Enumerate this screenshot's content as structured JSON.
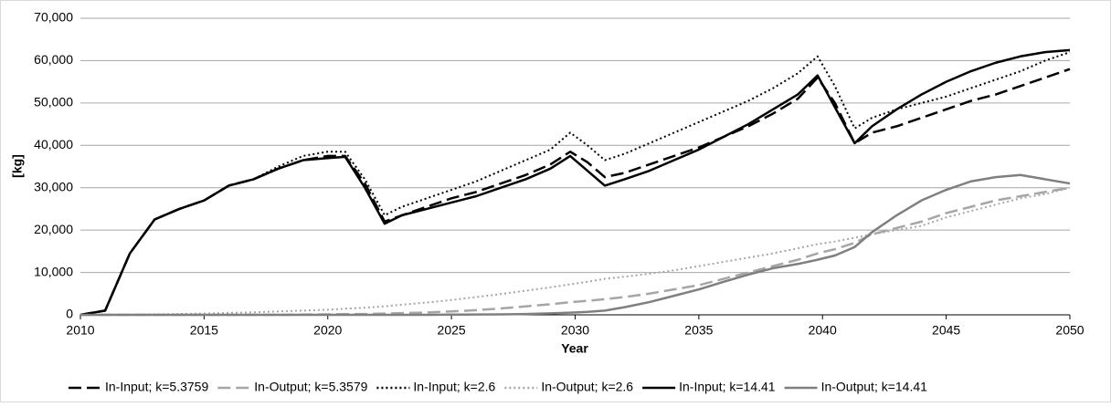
{
  "chart_data": {
    "type": "line",
    "x_label": "Year",
    "y_label": "[kg]",
    "x": [
      2010,
      2011,
      2012,
      2013,
      2014,
      2015,
      2016,
      2017,
      2018,
      2019,
      2020,
      2020.7,
      2021.5,
      2022.3,
      2023,
      2024,
      2025,
      2026,
      2027,
      2028,
      2029,
      2029.8,
      2030.5,
      2031.2,
      2032,
      2033,
      2034,
      2035,
      2036,
      2037,
      2038,
      2039,
      2039.8,
      2040.5,
      2041.3,
      2042,
      2043,
      2044,
      2045,
      2046,
      2047,
      2048,
      2049,
      2050
    ],
    "xlim": [
      2010,
      2050
    ],
    "xticks": [
      2010,
      2015,
      2020,
      2025,
      2030,
      2035,
      2040,
      2045,
      2050
    ],
    "ylim": [
      0,
      70000
    ],
    "yticks": [
      0,
      {
        "value": 10000,
        "label": "10,000"
      },
      {
        "value": 20000,
        "label": "20,000"
      },
      {
        "value": 30000,
        "label": "30,000"
      },
      {
        "value": 40000,
        "label": "40,000"
      },
      {
        "value": 50000,
        "label": "50,000"
      },
      {
        "value": 60000,
        "label": "60,000"
      },
      {
        "value": 70000,
        "label": "70,000"
      }
    ],
    "grid": true,
    "legend": "bottom",
    "series": [
      {
        "name": "In-Input; k=5.3759",
        "color": "#000000",
        "dash": "dash",
        "values": [
          0,
          1000,
          14500,
          22500,
          25000,
          27000,
          30500,
          32000,
          34500,
          36500,
          37500,
          37500,
          31000,
          22000,
          23500,
          25500,
          27500,
          29000,
          31000,
          33000,
          35500,
          38500,
          36000,
          32500,
          33500,
          35500,
          37500,
          39500,
          42000,
          44500,
          47500,
          51000,
          56000,
          50000,
          40500,
          43000,
          44500,
          46500,
          48500,
          50500,
          52000,
          54000,
          56000,
          58000
        ]
      },
      {
        "name": "In-Output; k=5.3579",
        "color": "#a6a6a6",
        "dash": "dash",
        "values": [
          0,
          0,
          0,
          0,
          0,
          0,
          0,
          0,
          0,
          50,
          100,
          150,
          200,
          300,
          400,
          550,
          800,
          1100,
          1500,
          2000,
          2500,
          3000,
          3300,
          3700,
          4200,
          5000,
          6000,
          7000,
          8500,
          10000,
          11500,
          13000,
          14500,
          15500,
          17000,
          19000,
          20500,
          22000,
          24000,
          25500,
          27000,
          28000,
          29000,
          30000
        ]
      },
      {
        "name": "In-Input; k=2.6",
        "color": "#000000",
        "dash": "dot",
        "values": [
          0,
          1000,
          14500,
          22500,
          25000,
          27000,
          30500,
          32000,
          35000,
          37500,
          38500,
          38500,
          32000,
          23500,
          25500,
          27500,
          29500,
          31500,
          34000,
          36500,
          39000,
          43000,
          40000,
          36500,
          38000,
          40500,
          43000,
          45500,
          48000,
          50500,
          53500,
          57000,
          61000,
          54000,
          44000,
          46500,
          48500,
          50000,
          51500,
          53500,
          55500,
          57500,
          60000,
          62000
        ]
      },
      {
        "name": "In-Output; k=2.6",
        "color": "#a6a6a6",
        "dash": "dot",
        "values": [
          0,
          20,
          50,
          100,
          200,
          300,
          450,
          600,
          800,
          1000,
          1200,
          1450,
          1700,
          2000,
          2400,
          2900,
          3500,
          4200,
          4900,
          5700,
          6500,
          7200,
          7800,
          8500,
          9000,
          9700,
          10500,
          11500,
          12500,
          13500,
          14500,
          15700,
          16700,
          17300,
          18200,
          19000,
          20000,
          21000,
          23000,
          24500,
          26000,
          27500,
          28500,
          30000
        ]
      },
      {
        "name": "In-Input; k=14.41",
        "color": "#000000",
        "dash": "solid",
        "values": [
          0,
          1000,
          14500,
          22500,
          25000,
          27000,
          30500,
          32000,
          34500,
          36500,
          37000,
          37300,
          30000,
          21500,
          23500,
          25000,
          26500,
          28000,
          30000,
          32000,
          34500,
          37500,
          34000,
          30500,
          32000,
          34000,
          36500,
          39000,
          42000,
          45000,
          48500,
          52000,
          56500,
          49000,
          40500,
          44500,
          48500,
          52000,
          55000,
          57500,
          59500,
          61000,
          62000,
          62500
        ]
      },
      {
        "name": "In-Output; k=14.41",
        "color": "#7f7f7f",
        "dash": "solid",
        "values": [
          0,
          0,
          0,
          0,
          0,
          0,
          0,
          0,
          0,
          0,
          0,
          0,
          0,
          0,
          0,
          0,
          50,
          80,
          120,
          200,
          350,
          500,
          700,
          1000,
          1800,
          3000,
          4500,
          6000,
          7800,
          9500,
          11000,
          12000,
          13000,
          14000,
          16000,
          19500,
          23500,
          27000,
          29500,
          31500,
          32500,
          33000,
          32000,
          31000
        ]
      }
    ]
  }
}
